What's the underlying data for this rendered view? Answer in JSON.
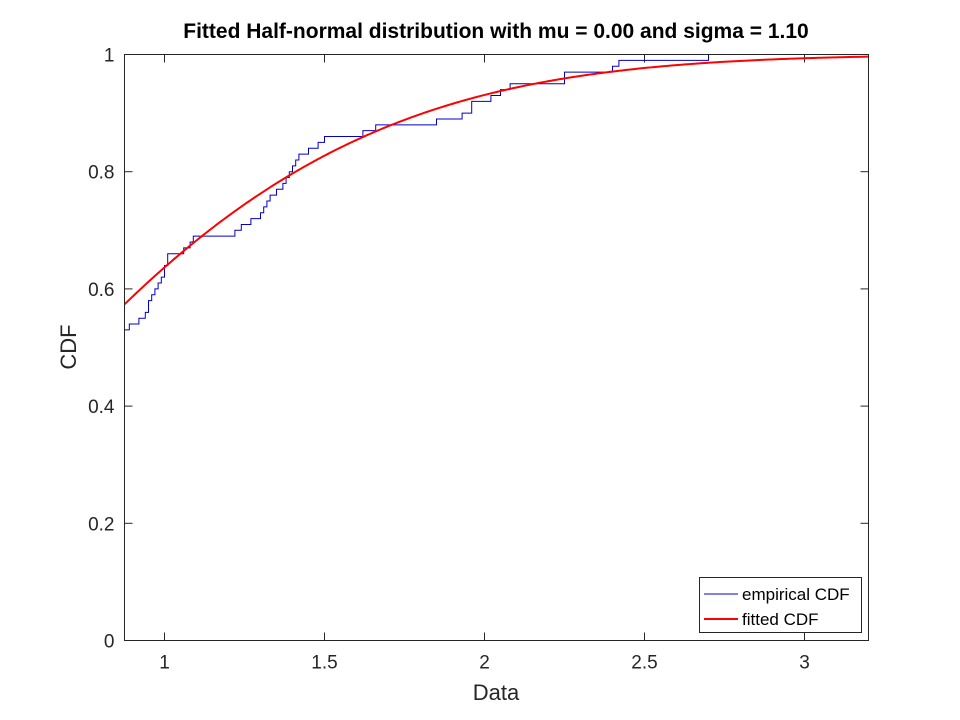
{
  "chart_data": {
    "type": "line",
    "title": "Fitted Half-normal distribution with mu = 0.00 and sigma = 1.10",
    "xlabel": "Data",
    "ylabel": "CDF",
    "xlim": [
      0.875,
      3.2
    ],
    "ylim": [
      0,
      1
    ],
    "xticks": [
      1,
      1.5,
      2,
      2.5,
      3
    ],
    "xtick_labels": [
      "1",
      "1.5",
      "2",
      "2.5",
      "3"
    ],
    "yticks": [
      0,
      0.2,
      0.4,
      0.6,
      0.8,
      1
    ],
    "ytick_labels": [
      "0",
      "0.2",
      "0.4",
      "0.6",
      "0.8",
      "1"
    ],
    "grid": false,
    "legend_position": "bottom-right",
    "series": [
      {
        "name": "empirical CDF",
        "kind": "stairs",
        "color": "#0000cc",
        "x": [
          0.875,
          0.89,
          0.92,
          0.94,
          0.95,
          0.96,
          0.97,
          0.98,
          0.99,
          1.0,
          1.01,
          1.06,
          1.08,
          1.09,
          1.11,
          1.22,
          1.24,
          1.27,
          1.3,
          1.31,
          1.32,
          1.33,
          1.35,
          1.37,
          1.38,
          1.39,
          1.4,
          1.41,
          1.42,
          1.45,
          1.48,
          1.5,
          1.51,
          1.53,
          1.62,
          1.66,
          1.85,
          1.88,
          1.93,
          1.96,
          2.02,
          2.03,
          2.05,
          2.08,
          2.17,
          2.25,
          2.32,
          2.4,
          2.42,
          2.55,
          2.7,
          3.2
        ],
        "y": [
          0.53,
          0.54,
          0.55,
          0.56,
          0.58,
          0.59,
          0.6,
          0.61,
          0.62,
          0.64,
          0.66,
          0.67,
          0.68,
          0.69,
          0.69,
          0.7,
          0.71,
          0.72,
          0.73,
          0.74,
          0.75,
          0.76,
          0.77,
          0.78,
          0.79,
          0.8,
          0.81,
          0.82,
          0.83,
          0.84,
          0.85,
          0.86,
          0.86,
          0.86,
          0.87,
          0.88,
          0.89,
          0.89,
          0.9,
          0.92,
          0.93,
          0.93,
          0.94,
          0.95,
          0.95,
          0.97,
          0.97,
          0.98,
          0.99,
          0.99,
          1.0,
          1.0
        ]
      },
      {
        "name": "fitted CDF",
        "kind": "curve",
        "color": "#ff0000",
        "mu": 0.0,
        "sigma": 1.1
      }
    ]
  }
}
